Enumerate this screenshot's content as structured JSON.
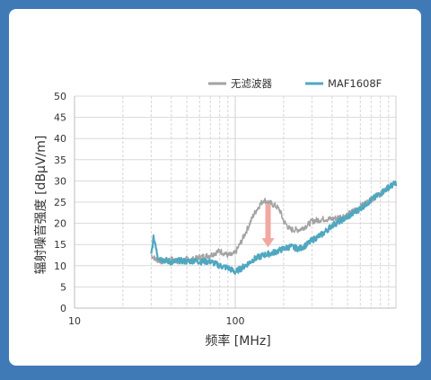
{
  "chart_data": {
    "type": "line",
    "xlabel": "频率 [MHz]",
    "ylabel": "辐射噪音强度 [dBμV/m]",
    "x_scale": "log",
    "xlim": [
      10,
      1000
    ],
    "ylim": [
      0,
      50
    ],
    "x_ticks": [
      10,
      100
    ],
    "x_tick_labels": [
      "10",
      "100"
    ],
    "y_ticks": [
      0,
      5,
      10,
      15,
      20,
      25,
      30,
      35,
      40,
      45,
      50
    ],
    "y_tick_labels": [
      "0",
      "5",
      "10",
      "15",
      "20",
      "25",
      "30",
      "35",
      "40",
      "45",
      "50"
    ],
    "grid": true,
    "legend_position": "top-right",
    "annotation": "down-arrow",
    "series": [
      {
        "name": "无滤波器",
        "color": "#a3a3a3",
        "x": [
          30,
          32,
          35,
          40,
          45,
          50,
          55,
          60,
          70,
          80,
          90,
          95,
          100,
          110,
          120,
          130,
          140,
          150,
          160,
          170,
          180,
          190,
          200,
          220,
          250,
          280,
          300,
          350,
          400,
          500,
          600,
          700,
          800,
          900,
          1000
        ],
        "y": [
          12.5,
          11.5,
          11,
          11.5,
          11,
          11.5,
          11.5,
          12,
          12.5,
          13.5,
          12.5,
          12.5,
          13,
          16,
          19,
          22,
          24,
          25.5,
          25,
          24.5,
          24,
          23,
          20.5,
          18.5,
          18.5,
          19.5,
          20.5,
          21,
          21,
          22,
          24,
          25.5,
          27,
          28.5,
          29.5
        ]
      },
      {
        "name": "MAF1608F",
        "color": "#4fa8c0",
        "x": [
          30,
          31,
          32,
          33,
          35,
          40,
          45,
          50,
          55,
          60,
          70,
          80,
          90,
          95,
          100,
          110,
          120,
          130,
          150,
          170,
          200,
          220,
          250,
          280,
          300,
          350,
          400,
          500,
          600,
          700,
          800,
          900,
          1000
        ],
        "y": [
          12.5,
          16.5,
          15,
          12,
          11.5,
          10.8,
          11.2,
          11,
          11.2,
          11,
          11,
          10,
          9.5,
          9,
          8.5,
          9.5,
          10.5,
          11.5,
          12.5,
          13,
          14,
          14.5,
          14,
          15,
          16,
          17.5,
          19.5,
          21.5,
          23.5,
          25.5,
          27,
          28.5,
          29.5
        ]
      }
    ]
  }
}
